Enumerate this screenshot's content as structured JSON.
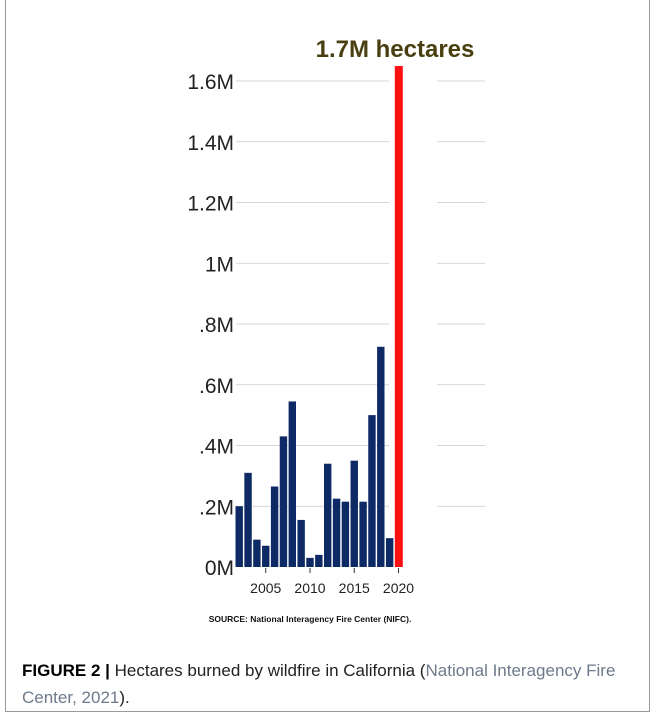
{
  "chart_data": {
    "type": "bar",
    "annotation": "1.7M hectares",
    "ylim": [
      0,
      1600000
    ],
    "y_ticks": [
      {
        "value": 0,
        "label": "0M"
      },
      {
        "value": 200000,
        "label": ".2M"
      },
      {
        "value": 400000,
        "label": ".4M"
      },
      {
        "value": 600000,
        "label": ".6M"
      },
      {
        "value": 800000,
        "label": ".8M"
      },
      {
        "value": 1000000,
        "label": "1M"
      },
      {
        "value": 1200000,
        "label": "1.2M"
      },
      {
        "value": 1400000,
        "label": "1.4M"
      },
      {
        "value": 1600000,
        "label": "1.6M"
      }
    ],
    "x_ticks": [
      "2005",
      "2010",
      "2015",
      "2020"
    ],
    "grid": true,
    "bar_color": "#0d2a66",
    "highlight_color": "#ff1010",
    "annotation_color": "#4a3f10",
    "categories": [
      "2002",
      "2003",
      "2004",
      "2005",
      "2006",
      "2007",
      "2008",
      "2009",
      "2010",
      "2011",
      "2012",
      "2013",
      "2014",
      "2015",
      "2016",
      "2017",
      "2018",
      "2019",
      "2020"
    ],
    "values": [
      200000,
      310000,
      90000,
      70000,
      265000,
      430000,
      545000,
      155000,
      30000,
      40000,
      340000,
      225000,
      215000,
      350000,
      215000,
      500000,
      725000,
      95000,
      1700000
    ],
    "highlight": "2020",
    "source": "SOURCE: National Interagency Fire Center (NIFC)."
  },
  "caption": {
    "label": "FIGURE 2 |",
    "text": " Hectares burned by wildfire in California (",
    "reference": "National Interagency Fire Center, 2021",
    "tail": ")."
  }
}
